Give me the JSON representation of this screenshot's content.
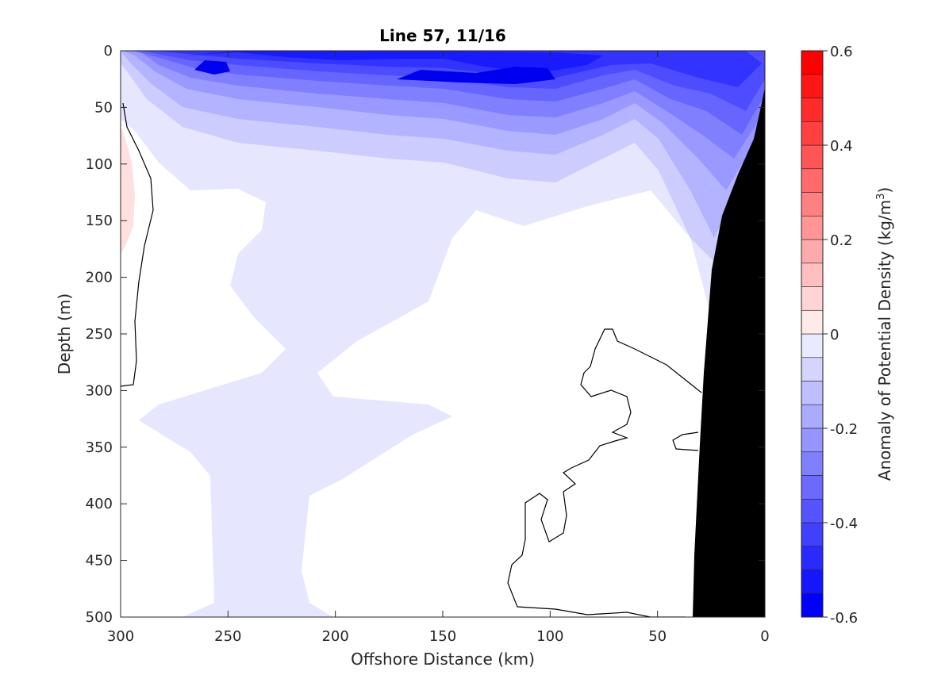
{
  "chart_data": {
    "type": "heatmap",
    "title": "Line 57, 11/16",
    "xlabel": "Offshore Distance (km)",
    "ylabel": "Depth (m)",
    "colorbar_label": "Anomaly of Potential Density (kg/m",
    "colorbar_label_sup": "3",
    "colorbar_label_end": ")",
    "xlim": [
      300,
      0
    ],
    "ylim": [
      500,
      0
    ],
    "x_ticks": [
      "300",
      "250",
      "200",
      "150",
      "100",
      "50",
      "0"
    ],
    "y_ticks": [
      "0",
      "50",
      "100",
      "150",
      "200",
      "250",
      "300",
      "350",
      "400",
      "450",
      "500"
    ],
    "clim": [
      -0.6,
      0.6
    ],
    "colorbar_ticks": [
      "0.6",
      "0.4",
      "0.2",
      "0",
      "-0.2",
      "-0.4",
      "-0.6"
    ],
    "contour_levels": [
      -0.6,
      -0.55,
      -0.5,
      -0.45,
      -0.4,
      -0.35,
      -0.3,
      -0.25,
      -0.2,
      -0.15,
      -0.1,
      -0.05,
      0,
      0.05,
      0.1,
      0.15,
      0.2,
      0.25,
      0.3,
      0.35,
      0.4,
      0.45,
      0.5,
      0.55,
      0.6
    ],
    "colormap": {
      "negative": "#0000ff",
      "zero": "#ffffff",
      "positive": "#ff0000"
    },
    "sample_field": [
      {
        "x": 260,
        "y": 15,
        "value": -0.5
      },
      {
        "x": 105,
        "y": 20,
        "value": -0.5
      },
      {
        "x": 200,
        "y": 60,
        "value": -0.3
      },
      {
        "x": 30,
        "y": 100,
        "value": -0.3
      },
      {
        "x": 150,
        "y": 110,
        "value": -0.1
      },
      {
        "x": 225,
        "y": 250,
        "value": -0.05
      },
      {
        "x": 230,
        "y": 450,
        "value": -0.05
      },
      {
        "x": 295,
        "y": 150,
        "value": 0.05
      },
      {
        "x": 100,
        "y": 300,
        "value": 0.0
      }
    ],
    "zero_contour_color": "#000000",
    "bathymetry_color": "#000000",
    "grid": false
  }
}
